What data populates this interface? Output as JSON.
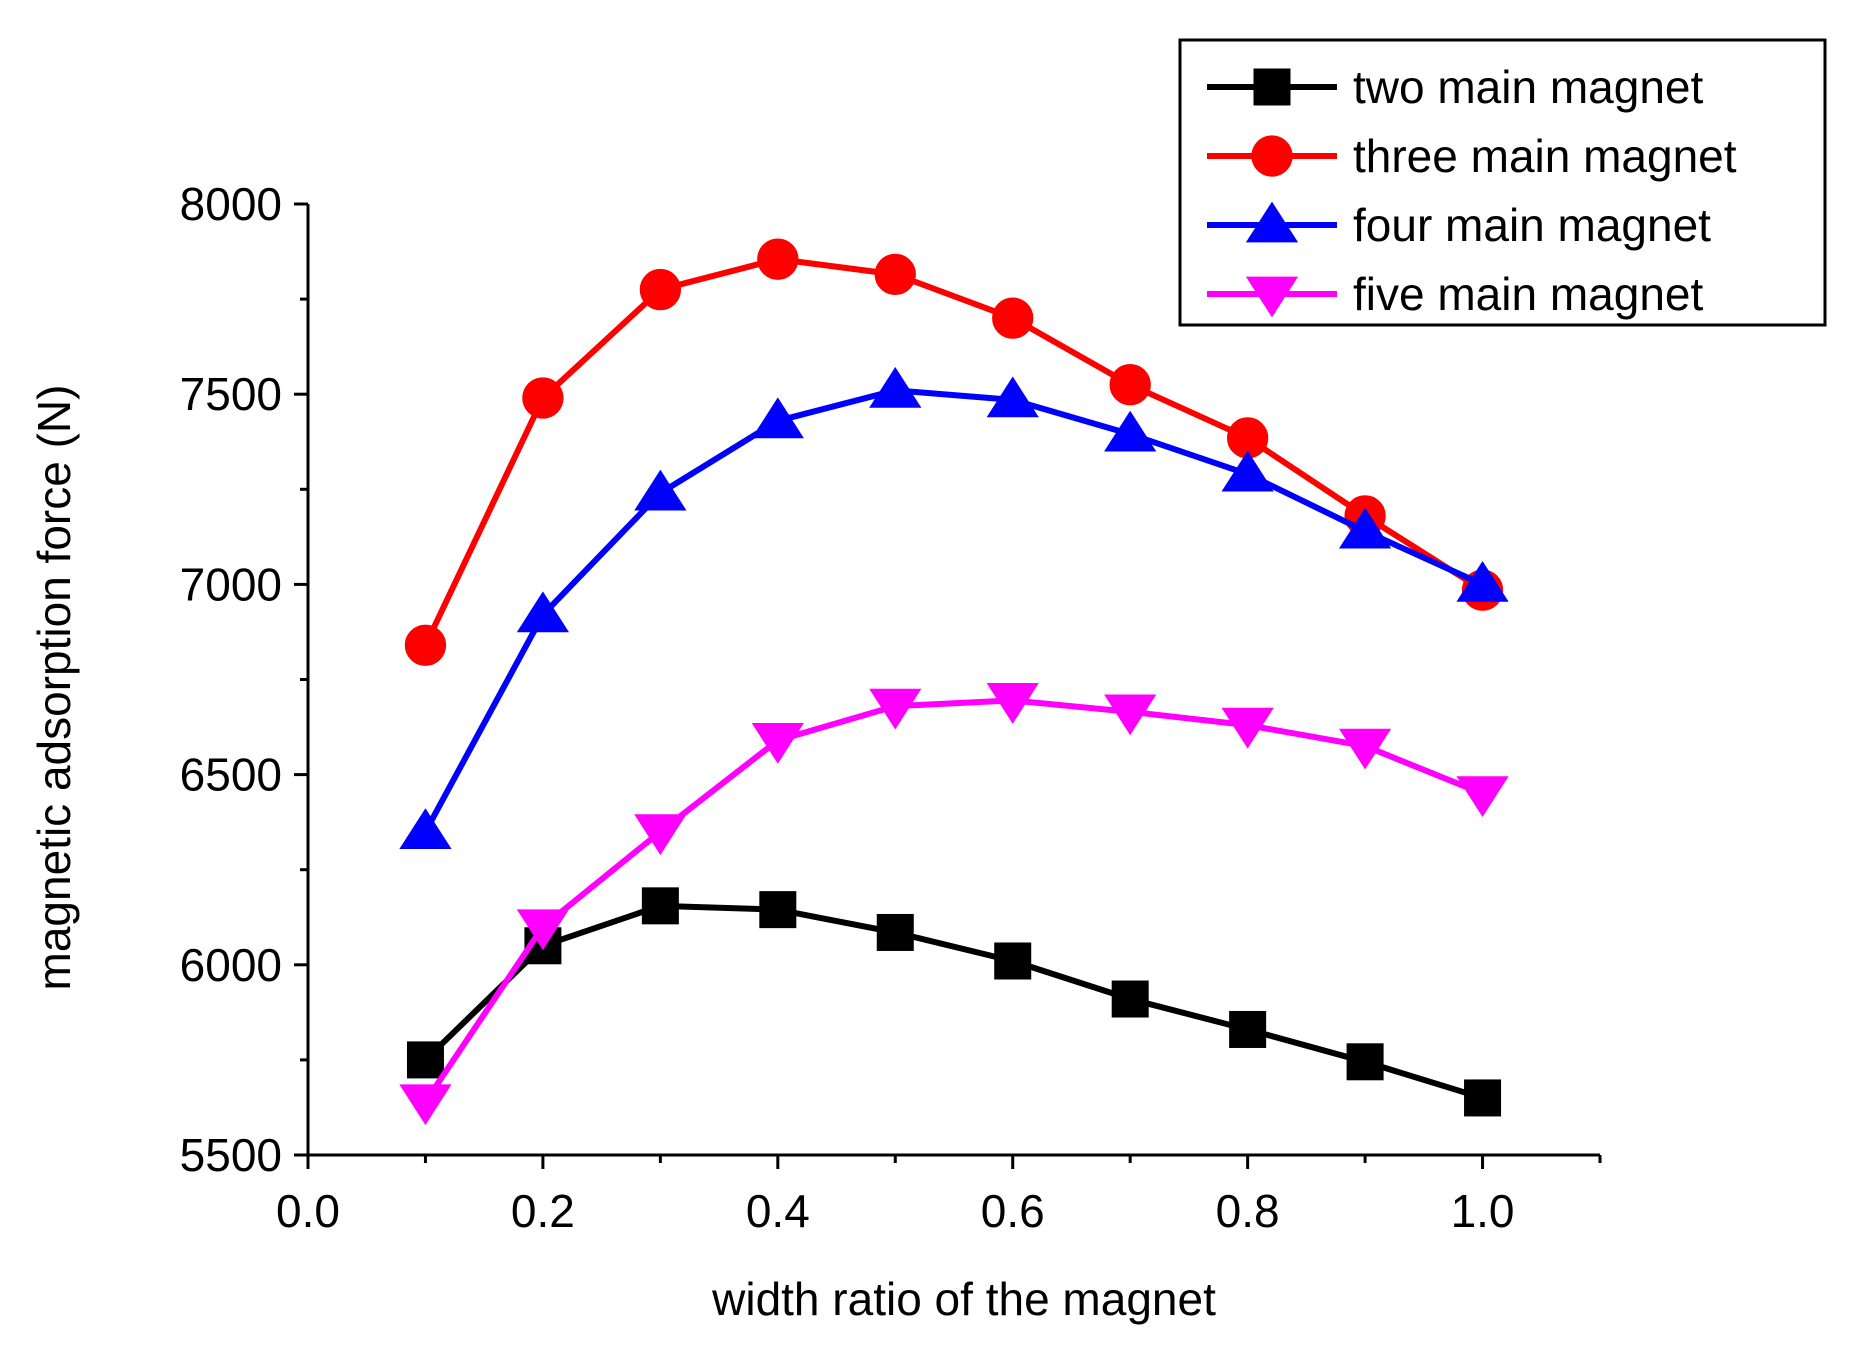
{
  "chart_data": {
    "type": "line",
    "title": "",
    "xlabel": "width ratio of the magnet",
    "ylabel": "magnetic adsorption force (N)",
    "xlim": [
      0.0,
      1.1
    ],
    "ylim": [
      5500,
      8000
    ],
    "xticks": [
      0.0,
      0.2,
      0.4,
      0.6,
      0.8,
      1.0
    ],
    "xtick_labels": [
      "0.0",
      "0.2",
      "0.4",
      "0.6",
      "0.8",
      "1.0"
    ],
    "yticks": [
      5500,
      6000,
      6500,
      7000,
      7500,
      8000
    ],
    "ytick_labels": [
      "5500",
      "6000",
      "6500",
      "7000",
      "7500",
      "8000"
    ],
    "x": [
      0.1,
      0.2,
      0.3,
      0.4,
      0.5,
      0.6,
      0.7,
      0.8,
      0.9,
      1.0
    ],
    "legend_position": "top-right",
    "grid": false,
    "series": [
      {
        "name": "two main magnet",
        "color": "#000000",
        "marker": "square",
        "values": [
          5750,
          6050,
          6155,
          6145,
          6085,
          6010,
          5910,
          5830,
          5745,
          5650
        ]
      },
      {
        "name": "three main magnet",
        "color": "#ff0000",
        "marker": "circle",
        "values": [
          6840,
          7490,
          7775,
          7855,
          7815,
          7700,
          7525,
          7385,
          7180,
          6985
        ]
      },
      {
        "name": "four main magnet",
        "color": "#0000ff",
        "marker": "triangle-up",
        "values": [
          6350,
          6920,
          7240,
          7430,
          7510,
          7485,
          7395,
          7290,
          7140,
          7000
        ]
      },
      {
        "name": "five main magnet",
        "color": "#ff00ff",
        "marker": "triangle-down",
        "values": [
          5640,
          6100,
          6350,
          6590,
          6680,
          6695,
          6665,
          6630,
          6575,
          6450
        ]
      }
    ]
  }
}
